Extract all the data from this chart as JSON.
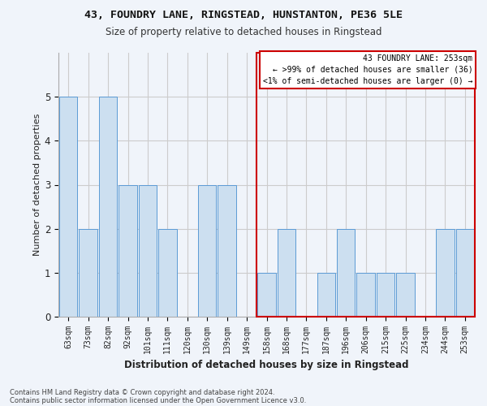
{
  "title1": "43, FOUNDRY LANE, RINGSTEAD, HUNSTANTON, PE36 5LE",
  "title2": "Size of property relative to detached houses in Ringstead",
  "xlabel": "Distribution of detached houses by size in Ringstead",
  "ylabel": "Number of detached properties",
  "categories": [
    "63sqm",
    "73sqm",
    "82sqm",
    "92sqm",
    "101sqm",
    "111sqm",
    "120sqm",
    "130sqm",
    "139sqm",
    "149sqm",
    "158sqm",
    "168sqm",
    "177sqm",
    "187sqm",
    "196sqm",
    "206sqm",
    "215sqm",
    "225sqm",
    "234sqm",
    "244sqm",
    "253sqm"
  ],
  "values": [
    5,
    2,
    5,
    3,
    3,
    2,
    0,
    3,
    3,
    0,
    1,
    2,
    0,
    1,
    2,
    1,
    1,
    1,
    0,
    2,
    2
  ],
  "bar_color": "#ccdff0",
  "bar_edge_color": "#5b9bd5",
  "highlight_index": 20,
  "annotation_text": "43 FOUNDRY LANE: 253sqm\n← >99% of detached houses are smaller (36)\n<1% of semi-detached houses are larger (0) →",
  "annotation_box_edge_color": "#cc0000",
  "annotation_box_face_color": "#ffffff",
  "ylim": [
    0,
    6
  ],
  "yticks": [
    0,
    1,
    2,
    3,
    4,
    5
  ],
  "background_color": "#f0f4fa",
  "grid_color": "#cccccc",
  "footer1": "Contains HM Land Registry data © Crown copyright and database right 2024.",
  "footer2": "Contains public sector information licensed under the Open Government Licence v3.0."
}
